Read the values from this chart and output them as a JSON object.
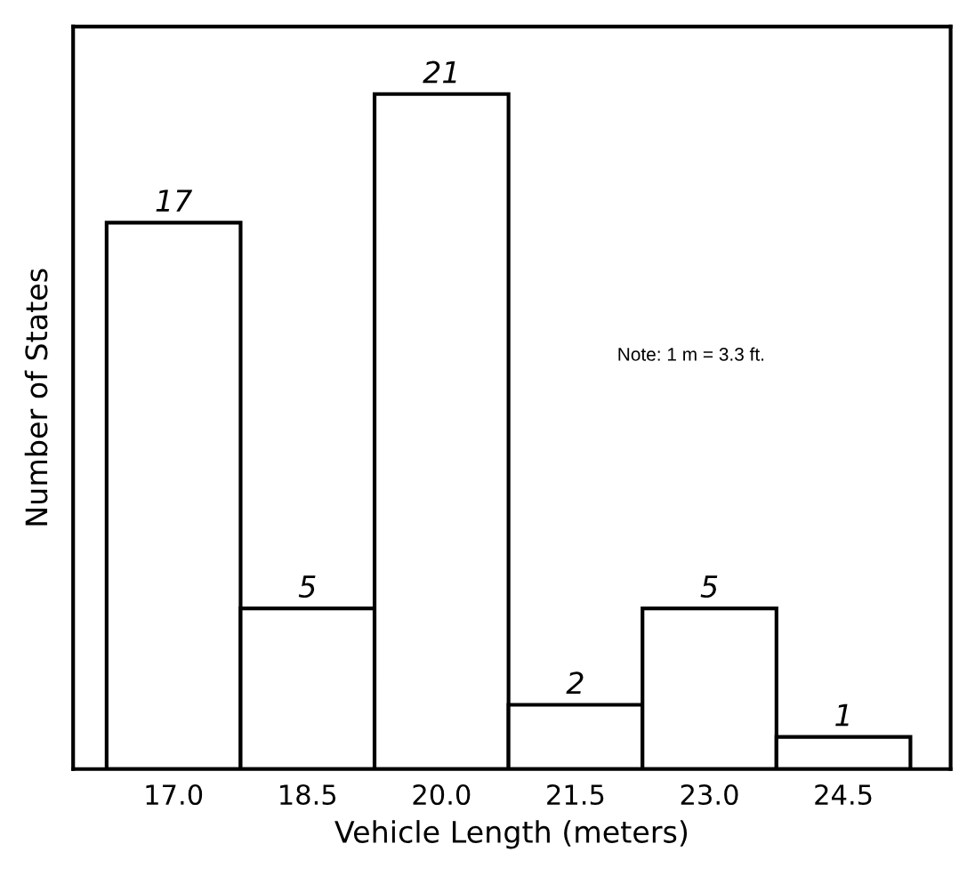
{
  "chart_data": {
    "type": "bar",
    "xlabel": "Vehicle Length (meters)",
    "ylabel": "Number of States",
    "categories": [
      "17.0",
      "18.5",
      "20.0",
      "21.5",
      "23.0",
      "24.5"
    ],
    "values": [
      17,
      5,
      21,
      2,
      5,
      1
    ],
    "color": "#ffffff",
    "data_labels": true,
    "grid": false,
    "legend": false,
    "tick_labels": "x",
    "annotations": [
      "Note: 1 m = 3.3 ft."
    ]
  }
}
